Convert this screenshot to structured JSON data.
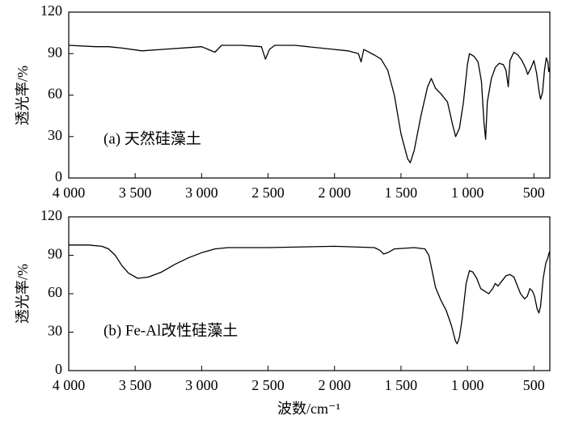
{
  "chart_data": [
    {
      "type": "line",
      "y_label": "透光率/%",
      "annotation": "(a) 天然硅藻土",
      "color": "#000000",
      "xlim": [
        4000,
        380
      ],
      "ylim": [
        0,
        120
      ],
      "xticks": [
        {
          "value": 4000,
          "label": "4 000"
        },
        {
          "value": 3500,
          "label": "3 500"
        },
        {
          "value": 3000,
          "label": "3 000"
        },
        {
          "value": 2500,
          "label": "2 500"
        },
        {
          "value": 2000,
          "label": "2 000"
        },
        {
          "value": 1500,
          "label": "1 500"
        },
        {
          "value": 1000,
          "label": "1 000"
        },
        500
      ],
      "yticks": [
        0,
        30,
        60,
        90,
        120
      ],
      "x": [
        4000,
        3800,
        3700,
        3600,
        3450,
        3300,
        3000,
        2950,
        2900,
        2850,
        2700,
        2550,
        2520,
        2490,
        2450,
        2300,
        2000,
        1900,
        1820,
        1800,
        1780,
        1700,
        1650,
        1600,
        1550,
        1500,
        1450,
        1430,
        1400,
        1350,
        1300,
        1272,
        1240,
        1200,
        1150,
        1110,
        1089,
        1060,
        1030,
        1000,
        985,
        950,
        920,
        895,
        875,
        863,
        850,
        820,
        790,
        760,
        730,
        710,
        693,
        680,
        651,
        620,
        590,
        560,
        547,
        520,
        500,
        480,
        460,
        450,
        435,
        420,
        407,
        395,
        388,
        380
      ],
      "values": [
        96,
        95,
        95,
        94,
        92,
        93,
        95,
        93,
        91,
        96,
        96,
        95,
        86,
        93,
        96,
        96,
        93,
        92,
        90,
        84,
        93,
        89,
        86,
        78,
        60,
        32,
        14,
        11,
        20,
        45,
        66,
        72,
        65,
        61,
        55,
        38,
        30,
        36,
        55,
        82,
        90,
        88,
        84,
        70,
        40,
        28,
        55,
        72,
        80,
        83,
        82,
        78,
        66,
        85,
        91,
        89,
        85,
        79,
        75,
        80,
        85,
        76,
        62,
        57,
        62,
        78,
        87,
        84,
        77,
        80
      ]
    },
    {
      "type": "line",
      "y_label": "透光率/%",
      "x_label": "波数/cm⁻¹",
      "annotation": "(b) Fe-Al改性硅藻土",
      "color": "#000000",
      "xlim": [
        4000,
        380
      ],
      "ylim": [
        0,
        120
      ],
      "xticks": [
        {
          "value": 4000,
          "label": "4 000"
        },
        {
          "value": 3500,
          "label": "3 500"
        },
        {
          "value": 3000,
          "label": "3 000"
        },
        {
          "value": 2500,
          "label": "2 500"
        },
        {
          "value": 2000,
          "label": "2 000"
        },
        {
          "value": 1500,
          "label": "1 500"
        },
        {
          "value": 1000,
          "label": "1 000"
        },
        500
      ],
      "yticks": [
        0,
        30,
        60,
        90,
        120
      ],
      "x": [
        4000,
        3850,
        3750,
        3700,
        3650,
        3600,
        3550,
        3480,
        3400,
        3300,
        3200,
        3100,
        3000,
        2900,
        2800,
        2500,
        2000,
        1700,
        1660,
        1630,
        1600,
        1550,
        1400,
        1320,
        1290,
        1270,
        1240,
        1200,
        1160,
        1120,
        1090,
        1077,
        1060,
        1040,
        1010,
        985,
        960,
        930,
        900,
        870,
        840,
        810,
        790,
        770,
        740,
        710,
        680,
        650,
        620,
        600,
        570,
        550,
        530,
        510,
        495,
        475,
        462,
        450,
        430,
        410,
        395,
        385,
        380
      ],
      "values": [
        98,
        98,
        97,
        95,
        90,
        82,
        76,
        72,
        73,
        77,
        83,
        88,
        92,
        95,
        96,
        96,
        97,
        96,
        94,
        91,
        92,
        95,
        96,
        95,
        90,
        80,
        65,
        55,
        47,
        35,
        23,
        21,
        26,
        40,
        68,
        78,
        77,
        72,
        64,
        62,
        60,
        64,
        68,
        66,
        70,
        74,
        75,
        73,
        65,
        60,
        56,
        58,
        64,
        62,
        58,
        48,
        45,
        50,
        72,
        84,
        88,
        92,
        93
      ]
    }
  ]
}
